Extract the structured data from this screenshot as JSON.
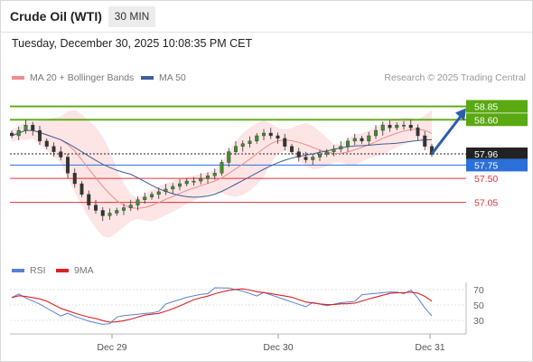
{
  "header": {
    "title": "Crude Oil (WTI)",
    "timeframe": "30 MIN"
  },
  "timestamp": "Tuesday, December 30, 2025 10:08:35 PM CET",
  "legend": {
    "ma20_label": "MA 20 + Bollinger Bands",
    "ma50_label": "MA 50",
    "credit": "Research © 2025 Trading Central",
    "colors": {
      "ma20": "#f28b8b",
      "ma50": "#3e5e9c",
      "bands": "#fde0e0"
    }
  },
  "chart_data": [
    {
      "type": "line",
      "title": "",
      "x_ticks": [
        "Dec 29",
        "Dec 30",
        "Dec 31"
      ],
      "y_range": [
        56.6,
        59.1
      ],
      "levels": [
        {
          "value": 58.85,
          "label": "58.85",
          "kind": "resistance",
          "color": "#5aa812"
        },
        {
          "value": 58.6,
          "label": "58.60",
          "kind": "resistance",
          "color": "#5aa812"
        },
        {
          "value": 57.96,
          "label": "57.96",
          "kind": "last-price",
          "color": "#222222"
        },
        {
          "value": 57.75,
          "label": "57.75",
          "kind": "pivot",
          "color": "#2c6fd8"
        },
        {
          "value": 57.5,
          "label": "57.50",
          "kind": "support",
          "color": "#e0303a"
        },
        {
          "value": 57.05,
          "label": "57.05",
          "kind": "support",
          "color": "#e0303a"
        }
      ],
      "projection": {
        "from": 57.96,
        "to": 58.85,
        "color": "#2d5fa8"
      },
      "close": [
        58.3,
        58.4,
        58.5,
        58.4,
        58.2,
        58.1,
        58.0,
        57.9,
        57.6,
        57.4,
        57.2,
        57.0,
        56.9,
        56.8,
        56.85,
        56.9,
        56.95,
        57.0,
        57.1,
        57.15,
        57.2,
        57.25,
        57.3,
        57.35,
        57.4,
        57.45,
        57.45,
        57.5,
        57.55,
        57.6,
        57.8,
        58.0,
        58.1,
        58.15,
        58.2,
        58.3,
        58.35,
        58.3,
        58.25,
        58.1,
        58.0,
        57.9,
        57.85,
        57.9,
        57.95,
        58.0,
        58.05,
        58.1,
        58.2,
        58.25,
        58.2,
        58.3,
        58.4,
        58.5,
        58.45,
        58.5,
        58.5,
        58.45,
        58.3,
        58.1,
        57.95
      ],
      "series": [
        {
          "name": "MA 20",
          "color": "#f28b8b"
        },
        {
          "name": "MA 50",
          "color": "#3e5e9c"
        }
      ]
    },
    {
      "type": "line",
      "title": "",
      "y_ticks": [
        70,
        50,
        30
      ],
      "y_range": [
        20,
        80
      ],
      "rsi": [
        63,
        61,
        57,
        54,
        51,
        47,
        43,
        39,
        36,
        33,
        31,
        29,
        28,
        27,
        29,
        31,
        34,
        36,
        38,
        40,
        42,
        45,
        48,
        52,
        56,
        60,
        63,
        66,
        68,
        69,
        70,
        71,
        70,
        69,
        67,
        65,
        63,
        61,
        59,
        57,
        55,
        53,
        51,
        50,
        49,
        48,
        51,
        54,
        56,
        58,
        60,
        62,
        64,
        66,
        68,
        69,
        68,
        66,
        57,
        45,
        36
      ],
      "series": [
        {
          "name": "RSI",
          "color": "#5b7fd6"
        },
        {
          "name": "9MA",
          "color": "#e02020"
        }
      ]
    }
  ]
}
